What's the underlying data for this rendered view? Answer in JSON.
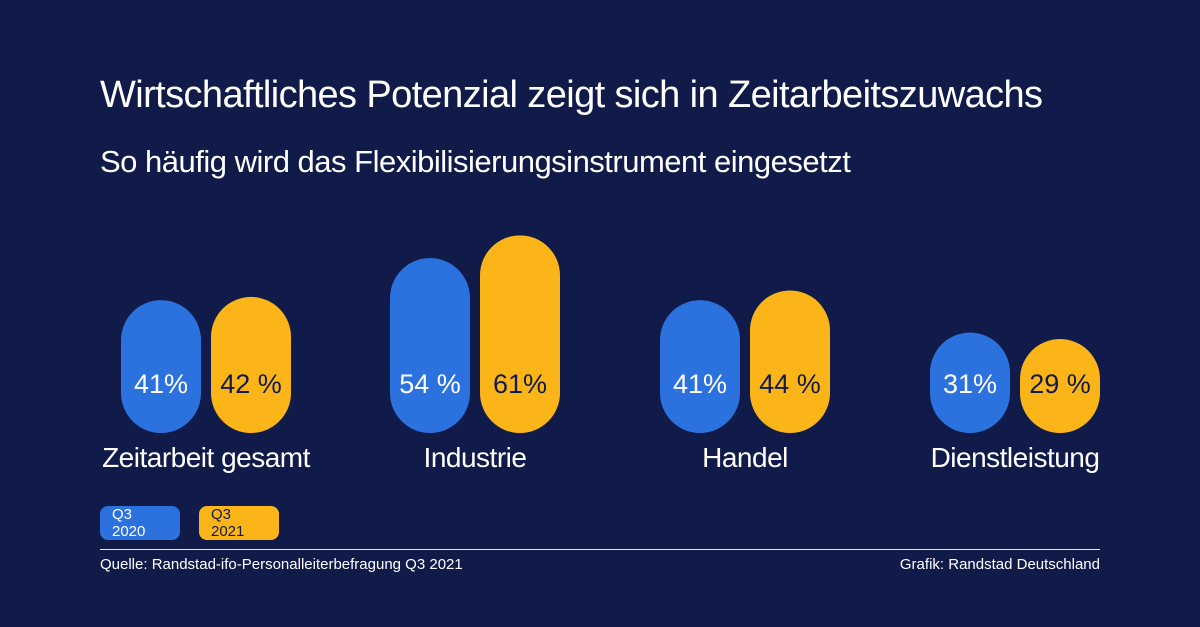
{
  "title": "Wirtschaftliches Potenzial zeigt sich in Zeitarbeitszuwachs",
  "subtitle": "So häufig wird das Flexibilisierungsinstrument eingesetzt",
  "chart_data": {
    "type": "bar",
    "title": "Wirtschaftliches Potenzial zeigt sich in Zeitarbeitszuwachs",
    "subtitle": "So häufig wird das Flexibilisierungsinstrument eingesetzt",
    "categories": [
      "Zeitarbeit gesamt",
      "Industrie",
      "Handel",
      "Dienstleistung"
    ],
    "series": [
      {
        "name": "Q3 2020",
        "color": "#2b72de",
        "values": [
          41,
          54,
          41,
          31
        ],
        "labels": [
          "41%",
          "54 %",
          "41%",
          "31%"
        ],
        "label_color": "#ffffff"
      },
      {
        "name": "Q3 2021",
        "color": "#fbb518",
        "values": [
          42,
          61,
          44,
          29
        ],
        "labels": [
          "42 %",
          "61%",
          "44 %",
          "29 %"
        ],
        "label_color": "#101b4a"
      }
    ],
    "unit": "%",
    "xlabel": "",
    "ylabel": "",
    "grid": false,
    "legend": "bottom-left"
  },
  "legend": {
    "items": [
      {
        "label": "Q3 2020",
        "color": "#2b72de"
      },
      {
        "label": "Q3 2021",
        "color": "#fbb518"
      }
    ]
  },
  "footer": {
    "source": "Quelle: Randstad-ifo-Personalleiterbefragung Q3 2021",
    "credit": "Grafik: Randstad Deutschland"
  },
  "colors": {
    "background": "#101b4a",
    "text": "#ffffff",
    "series_1": "#2b72de",
    "series_2": "#fbb518"
  }
}
